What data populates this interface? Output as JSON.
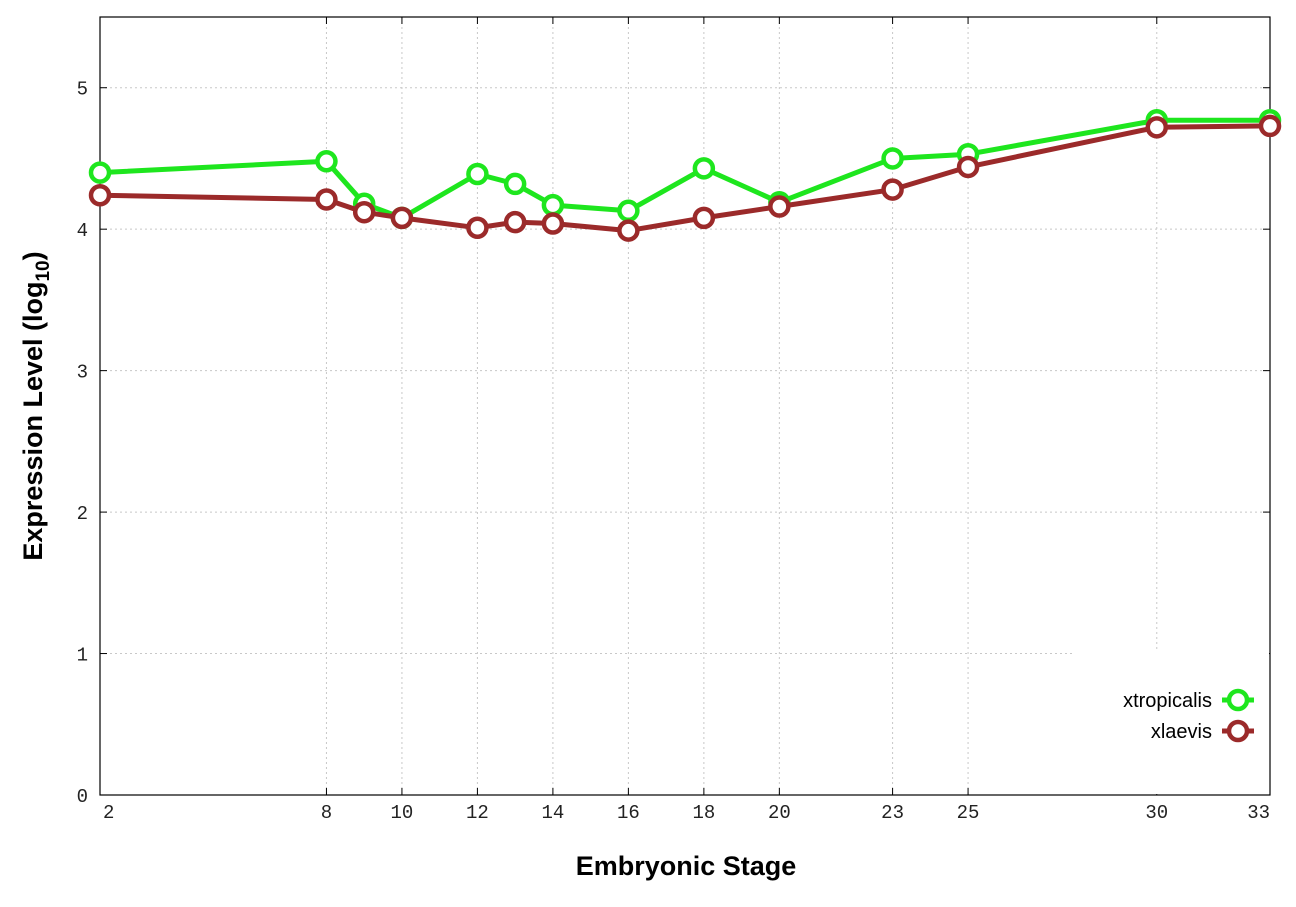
{
  "chart_data": {
    "type": "line",
    "xlabel": "Embryonic Stage",
    "ylabel_main": "Expression Level (log",
    "ylabel_sub": "10",
    "ylabel_close": ")",
    "x": [
      2,
      8,
      9,
      10,
      12,
      13,
      14,
      16,
      18,
      20,
      23,
      25,
      30,
      33
    ],
    "x_tick_labels": [
      "2",
      "8",
      "10",
      "12",
      "14",
      "16",
      "18",
      "20",
      "23",
      "25",
      "30",
      "33"
    ],
    "y_ticks": [
      0,
      1,
      2,
      3,
      4,
      5
    ],
    "xlim": [
      2,
      33
    ],
    "ylim": [
      0,
      5.5
    ],
    "grid": true,
    "legend_position": "bottom-right",
    "series": [
      {
        "name": "xtropicalis",
        "color": "#1ee61e",
        "values": [
          4.4,
          4.48,
          4.18,
          4.08,
          4.39,
          4.32,
          4.17,
          4.13,
          4.43,
          4.19,
          4.5,
          4.53,
          4.77,
          4.77
        ]
      },
      {
        "name": "xlaevis",
        "color": "#9b2a2a",
        "values": [
          4.24,
          4.21,
          4.12,
          4.08,
          4.01,
          4.05,
          4.04,
          3.99,
          4.08,
          4.16,
          4.28,
          4.44,
          4.72,
          4.73
        ]
      }
    ]
  }
}
